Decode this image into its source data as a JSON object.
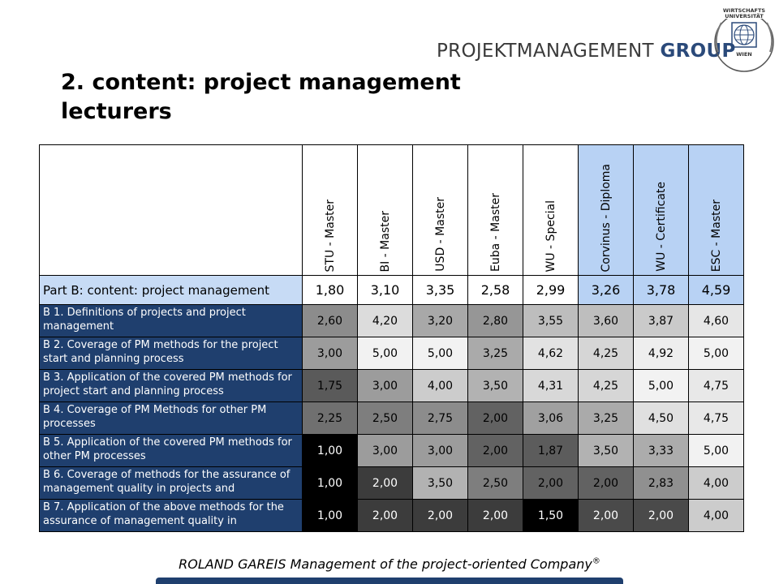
{
  "brand": {
    "left": "PROJEKTMANAGEMENT ",
    "right": "GROUP",
    "seal_top": "WIRTSCHAFTS UNIVERSITÄT",
    "seal_bottom": "WIEN"
  },
  "title": "2. content: project management lecturers",
  "table": {
    "columns": [
      {
        "label": "STU - Master",
        "highlight": false
      },
      {
        "label": "BI - Master",
        "highlight": false
      },
      {
        "label": "USD - Master",
        "highlight": false
      },
      {
        "label": "Euba - Master",
        "highlight": false
      },
      {
        "label": "WU - Special",
        "highlight": false
      },
      {
        "label": "Corvinus - Diploma",
        "highlight": true
      },
      {
        "label": "WU - Certificate",
        "highlight": true
      },
      {
        "label": "ESC - Master",
        "highlight": true
      }
    ],
    "summary": {
      "label": "Part B: content: project management",
      "values": [
        "1,80",
        "3,10",
        "3,35",
        "2,58",
        "2,99",
        "3,26",
        "3,78",
        "4,59"
      ]
    },
    "rows": [
      {
        "label": "B 1. Definitions of projects and project management",
        "values": [
          "2,60",
          "4,20",
          "3,20",
          "2,80",
          "3,55",
          "3,60",
          "3,87",
          "4,60"
        ],
        "shades": [
          "#8c8c8c",
          "#dcdcdc",
          "#a8a8a8",
          "#969696",
          "#bdbdbd",
          "#bebebe",
          "#cacaca",
          "#e6e6e6"
        ]
      },
      {
        "label": "B 2. Coverage of PM methods for the project start and planning process",
        "values": [
          "3,00",
          "5,00",
          "5,00",
          "3,25",
          "4,62",
          "4,25",
          "4,92",
          "5,00"
        ],
        "shades": [
          "#9c9c9c",
          "#f2f2f2",
          "#f2f2f2",
          "#aaaaaa",
          "#e2e2e2",
          "#d6d6d6",
          "#eeeeee",
          "#f2f2f2"
        ]
      },
      {
        "label": "B 3. Application of the covered PM methods for project start and planning process",
        "values": [
          "1,75",
          "3,00",
          "4,00",
          "3,50",
          "4,31",
          "4,25",
          "5,00",
          "4,75"
        ],
        "shades": [
          "#5a5a5a",
          "#9c9c9c",
          "#cccccc",
          "#b2b2b2",
          "#d8d8d8",
          "#d6d6d6",
          "#f2f2f2",
          "#e8e8e8"
        ]
      },
      {
        "label": "B 4. Coverage of PM Methods for other PM processes",
        "values": [
          "2,25",
          "2,50",
          "2,75",
          "2,00",
          "3,06",
          "3,25",
          "4,50",
          "4,75"
        ],
        "shades": [
          "#707070",
          "#7e7e7e",
          "#8c8c8c",
          "#626262",
          "#a0a0a0",
          "#aaaaaa",
          "#e0e0e0",
          "#e8e8e8"
        ]
      },
      {
        "label": "B 5. Application of the covered PM methods for other PM processes",
        "values": [
          "1,00",
          "3,00",
          "3,00",
          "2,00",
          "1,87",
          "3,50",
          "3,33",
          "5,00"
        ],
        "shades": [
          "#000000",
          "#9c9c9c",
          "#9c9c9c",
          "#626262",
          "#5c5c5c",
          "#b2b2b2",
          "#acacac",
          "#f2f2f2"
        ]
      },
      {
        "label": "B 6. Coverage of methods for the assurance of management quality in projects and",
        "values": [
          "1,00",
          "2,00",
          "3,50",
          "2,50",
          "2,00",
          "2,00",
          "2,83",
          "4,00"
        ],
        "shades": [
          "#000000",
          "#3c3c3c",
          "#b2b2b2",
          "#7e7e7e",
          "#626262",
          "#626262",
          "#909090",
          "#cccccc"
        ]
      },
      {
        "label": "B 7. Application of the above methods for the assurance of management quality in",
        "values": [
          "1,00",
          "2,00",
          "2,00",
          "2,00",
          "1,50",
          "2,00",
          "2,00",
          "4,00"
        ],
        "shades": [
          "#000000",
          "#3c3c3c",
          "#3c3c3c",
          "#3c3c3c",
          "#000000",
          "#4a4a4a",
          "#4a4a4a",
          "#cccccc"
        ]
      }
    ]
  },
  "footer": {
    "text": "ROLAND GAREIS Management of the project-oriented Company",
    "mark": "®"
  }
}
